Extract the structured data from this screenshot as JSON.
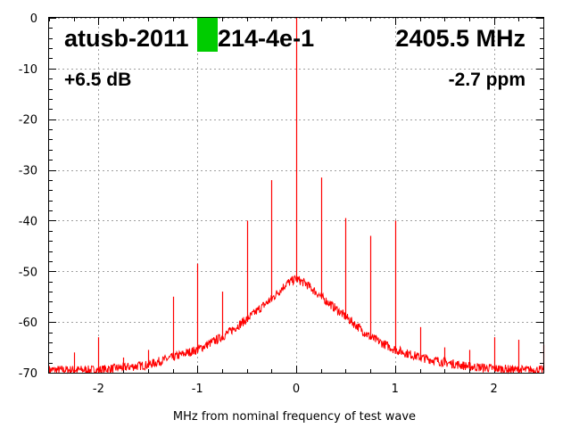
{
  "chart_data": {
    "type": "line",
    "title": "",
    "xlabel": "MHz from nominal frequency of test wave",
    "ylabel": "",
    "xlim": [
      -2.5,
      2.5
    ],
    "ylim": [
      -70,
      0
    ],
    "xticks": [
      -2,
      -1,
      0,
      1,
      2
    ],
    "yticks": [
      0,
      -10,
      -20,
      -30,
      -40,
      -50,
      -60,
      -70
    ],
    "grid": true,
    "series_color": "#ff0000",
    "highlight_color": "#00cc00",
    "annotations": {
      "device": "atusb-2011",
      "device_suffix": "214-4e-1",
      "frequency": "2405.5 MHz",
      "gain": "+6.5 dB",
      "offset": "-2.7 ppm"
    },
    "series": [
      {
        "baseline": {
          "x": [
            -2.5,
            -2.25,
            -2.0,
            -1.75,
            -1.5,
            -1.25,
            -1.0,
            -0.75,
            -0.5,
            -0.25,
            -0.1,
            0.0,
            0.1,
            0.25,
            0.5,
            0.75,
            1.0,
            1.25,
            1.5,
            1.75,
            2.0,
            2.25,
            2.5
          ],
          "y": [
            -70,
            -70,
            -70,
            -69.5,
            -69,
            -67.5,
            -66,
            -63.5,
            -60,
            -56,
            -53,
            -52,
            -53,
            -55.5,
            -59.5,
            -63.5,
            -66,
            -67.5,
            -68.5,
            -69.3,
            -69.7,
            -70,
            -70
          ]
        },
        "spikes": {
          "x": [
            -2.25,
            -2.0,
            -1.75,
            -1.5,
            -1.25,
            -1.0,
            -0.75,
            -0.5,
            -0.25,
            0.0,
            0.25,
            0.5,
            0.75,
            1.0,
            1.25,
            1.5,
            1.75,
            2.0,
            2.25,
            2.5
          ],
          "y": [
            -66,
            -63,
            -67,
            -65.5,
            -55,
            -48.5,
            -54,
            -40,
            -32,
            0,
            -31.5,
            -39.5,
            -43,
            -40,
            -61,
            -65,
            -65.5,
            -63,
            -63.5,
            -64.5
          ]
        }
      }
    ]
  }
}
